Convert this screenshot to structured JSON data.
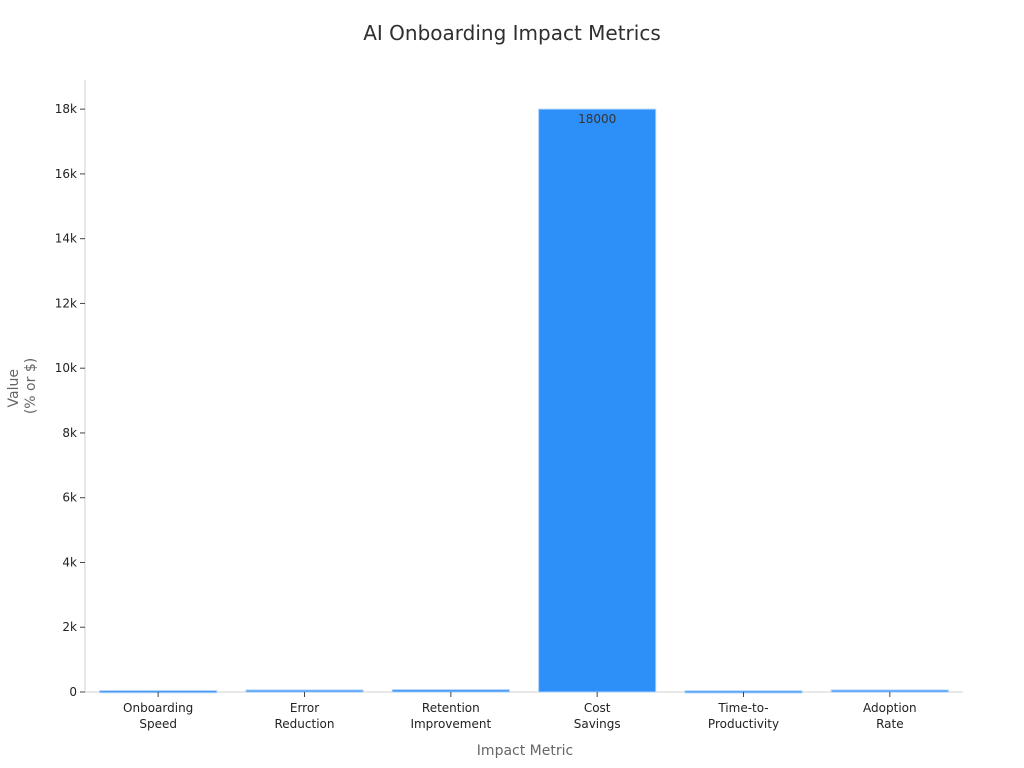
{
  "chart_data": {
    "type": "bar",
    "title": "AI Onboarding Impact Metrics",
    "xlabel": "Impact Metric",
    "ylabel_lines": [
      "Value",
      "(% or $)"
    ],
    "categories": [
      [
        "Onboarding",
        "Speed"
      ],
      [
        "Error",
        "Reduction"
      ],
      [
        "Retention",
        "Improvement"
      ],
      [
        "Cost",
        "Savings"
      ],
      [
        "Time-to-",
        "Productivity"
      ],
      [
        "Adoption",
        "Rate"
      ]
    ],
    "values": [
      40,
      60,
      70,
      18000,
      35,
      60
    ],
    "data_labels": [
      "",
      "",
      "",
      "18000",
      "",
      ""
    ],
    "ylim": [
      0,
      18900
    ],
    "yticks": [
      0,
      2000,
      4000,
      6000,
      8000,
      10000,
      12000,
      14000,
      16000,
      18000
    ],
    "ytick_labels": [
      "0",
      "2k",
      "4k",
      "6k",
      "8k",
      "10k",
      "12k",
      "14k",
      "16k",
      "18k"
    ],
    "grid": false,
    "colors": {
      "bar": "#2d8ff8",
      "bar_edge": "#a9cdf7"
    }
  }
}
